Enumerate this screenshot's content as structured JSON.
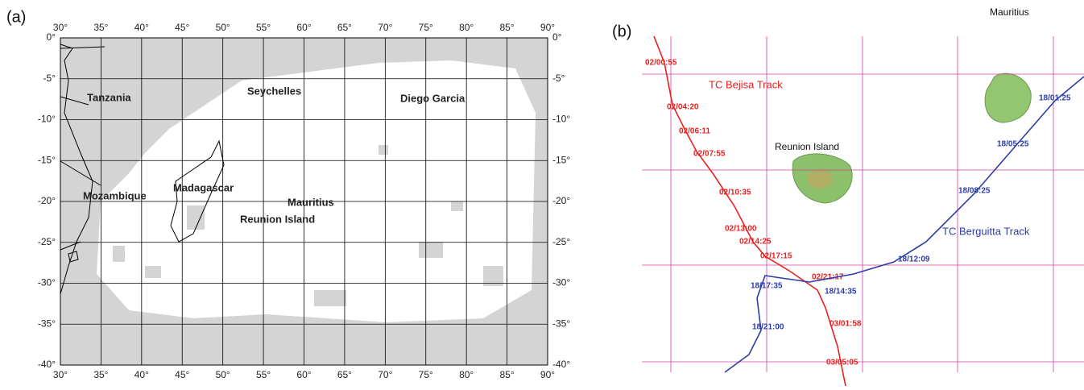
{
  "panel_a": {
    "label": "(a)",
    "lon_labels": [
      "30°",
      "35°",
      "40°",
      "45°",
      "50°",
      "55°",
      "60°",
      "65°",
      "70°",
      "75°",
      "80°",
      "85°",
      "90°"
    ],
    "lat_labels": [
      "0°",
      "-5°",
      "-10°",
      "-15°",
      "-20°",
      "-25°",
      "-30°",
      "-35°",
      "-40°"
    ],
    "places": [
      {
        "label": "Tanzania"
      },
      {
        "label": "Seychelles"
      },
      {
        "label": "Diego Garcia"
      },
      {
        "label": "Mozambique"
      },
      {
        "label": "Madagascar"
      },
      {
        "label": "Mauritius"
      },
      {
        "label": "Reunion Island"
      }
    ]
  },
  "panel_b": {
    "label": "(b)",
    "places": [
      {
        "label": "Reunion Island"
      },
      {
        "label": "Mauritius"
      }
    ],
    "tracks": [
      {
        "name": "TC Bejisa Track",
        "color": "#e8201e",
        "times": [
          "02/00:55",
          "02/04:20",
          "02/06:11",
          "02/07:55",
          "02/10:35",
          "02/13:00",
          "02/14:25",
          "02/17:15",
          "02/21:17",
          "03/01:58",
          "03/05:05"
        ]
      },
      {
        "name": "TC Berguitta Track",
        "color": "#2c3ca8",
        "times": [
          "18/01:25",
          "18/05:25",
          "18/08:25",
          "18/12:09",
          "18/14:35",
          "18/17:35",
          "18/21:00"
        ]
      }
    ]
  }
}
